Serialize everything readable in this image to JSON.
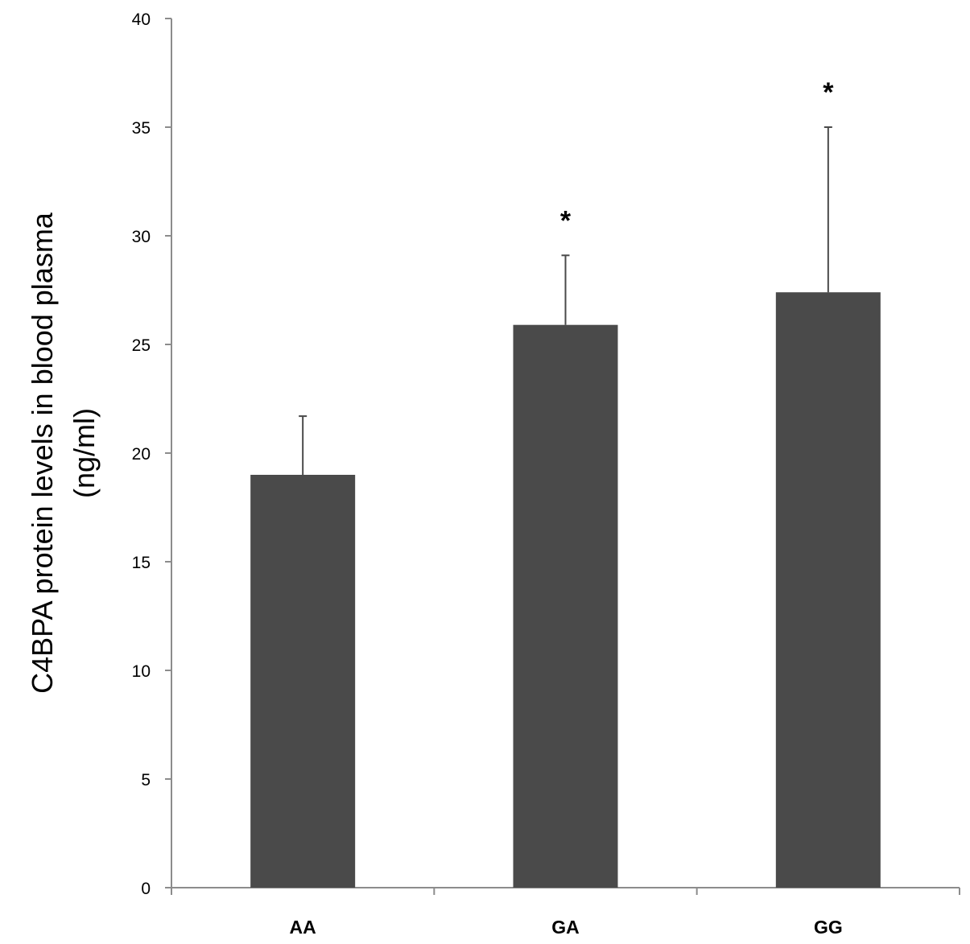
{
  "chart_data": {
    "type": "bar",
    "categories": [
      "AA",
      "GA",
      "GG"
    ],
    "values": [
      19.0,
      25.9,
      27.4
    ],
    "errors": [
      2.7,
      3.2,
      7.6
    ],
    "annotations": [
      "",
      "*",
      "*"
    ],
    "title": "",
    "xlabel": "",
    "ylabel_lines": [
      "C4BPA protein levels in blood plasma",
      "(ng/ml)"
    ],
    "ylim": [
      0,
      40
    ],
    "yticks": [
      0,
      5,
      10,
      15,
      20,
      25,
      30,
      35,
      40
    ],
    "grid": false,
    "colors": {
      "bar": "#4a4a4a",
      "axis": "#8c8c8c"
    }
  }
}
